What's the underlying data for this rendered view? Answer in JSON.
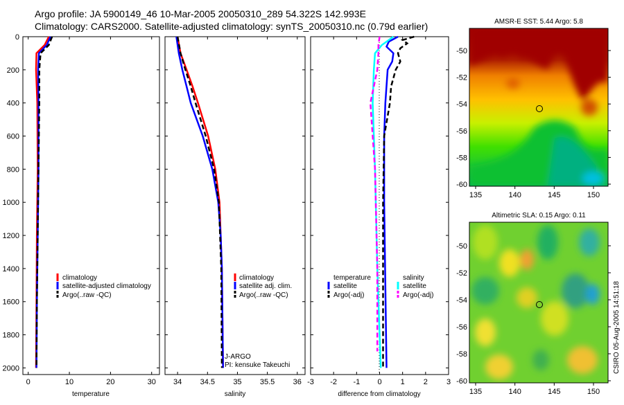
{
  "header": {
    "line1": "Argo profile: JA 5900149_46 10-Mar-2005 20050310_289 54.322S 142.993E",
    "line2": "Climatology: CARS2000. Satellite-adjusted climatology: synTS_20050310.nc (0.79d earlier)"
  },
  "credit": "CSIRO 05-Aug-2005 14:51:18",
  "chart_data": [
    {
      "type": "line",
      "id": "temperature",
      "xlabel": "temperature",
      "ylabel": "depth",
      "xlim": [
        -1.3,
        31.9
      ],
      "ylim": [
        2040,
        0
      ],
      "xticks": [
        0,
        10,
        20,
        30
      ],
      "yticks": [
        0,
        200,
        400,
        600,
        800,
        1000,
        1200,
        1400,
        1600,
        1800,
        2000
      ],
      "legend": [
        "climatology",
        "satellite-adjusted climatology",
        "Argo(..raw -QC)"
      ],
      "series": [
        {
          "name": "climatology",
          "color": "#ff0000",
          "dash": false,
          "depth": [
            0,
            50,
            100,
            200,
            400,
            800,
            1200,
            1600,
            2000
          ],
          "values": [
            5.0,
            4.0,
            2.0,
            1.9,
            2.2,
            2.3,
            2.1,
            2.0,
            1.9
          ]
        },
        {
          "name": "satellite-adjusted climatology",
          "color": "#0000ff",
          "dash": false,
          "depth": [
            0,
            50,
            100,
            200,
            400,
            800,
            1200,
            1600,
            2000
          ],
          "values": [
            5.4,
            4.5,
            2.6,
            2.4,
            2.5,
            2.5,
            2.3,
            2.1,
            2.0
          ]
        },
        {
          "name": "Argo(..raw -QC)",
          "color": "#000000",
          "dash": true,
          "depth": [
            0,
            50,
            100,
            200,
            400,
            800,
            1200,
            1600,
            2000
          ],
          "values": [
            5.8,
            5.0,
            3.0,
            2.7,
            2.7,
            2.5,
            2.3,
            2.1,
            2.0
          ]
        }
      ]
    },
    {
      "type": "line",
      "id": "salinity",
      "xlabel": "salinity",
      "xlim": [
        33.79,
        36.13
      ],
      "ylim": [
        2040,
        0
      ],
      "xticks": [
        34,
        34.5,
        35,
        35.5,
        36
      ],
      "legend": [
        "climatology",
        "satellite adj. clim.",
        "Argo(..raw -QC)"
      ],
      "annotations": [
        "J-ARGO",
        "PI: kensuke Takeuchi"
      ],
      "series": [
        {
          "name": "climatology",
          "color": "#ff0000",
          "dash": false,
          "depth": [
            0,
            100,
            200,
            300,
            400,
            600,
            800,
            1000,
            1200,
            1400,
            2000
          ],
          "values": [
            34.0,
            34.05,
            34.15,
            34.25,
            34.34,
            34.51,
            34.63,
            34.7,
            34.72,
            34.74,
            34.76
          ]
        },
        {
          "name": "satellite adj. clim.",
          "color": "#0000ff",
          "dash": false,
          "depth": [
            0,
            100,
            200,
            300,
            400,
            600,
            800,
            1000,
            1200,
            1400,
            2000
          ],
          "values": [
            33.98,
            34.02,
            34.08,
            34.15,
            34.22,
            34.42,
            34.58,
            34.68,
            34.72,
            34.74,
            34.76
          ]
        },
        {
          "name": "Argo(..raw -QC)",
          "color": "#000000",
          "dash": true,
          "depth": [
            0,
            100,
            200,
            300,
            400,
            600,
            800,
            1000,
            1200,
            1400,
            2000
          ],
          "values": [
            34.0,
            34.05,
            34.13,
            34.22,
            34.3,
            34.47,
            34.61,
            34.69,
            34.71,
            34.73,
            34.74
          ]
        }
      ]
    },
    {
      "type": "line",
      "id": "difference",
      "xlabel": "difference from climatology",
      "xlim": [
        -3,
        3
      ],
      "ylim": [
        2040,
        0
      ],
      "xticks": [
        -3,
        -2,
        -1,
        0,
        1,
        2,
        3
      ],
      "legend_titles": [
        "temperature",
        "salinity"
      ],
      "legend": [
        "satellite",
        "Argo(-adj)",
        "satellite",
        "Argo(-adj)"
      ],
      "series": [
        {
          "name": "temperature satellite",
          "color": "#0000ff",
          "dash": false,
          "depth": [
            0,
            30,
            60,
            100,
            150,
            200,
            400,
            600,
            1000,
            1500,
            2000
          ],
          "values": [
            0.8,
            0.4,
            0.3,
            0.6,
            0.55,
            0.35,
            0.25,
            0.2,
            0.2,
            0.25,
            0.3
          ]
        },
        {
          "name": "temperature Argo(-adj)",
          "color": "#000000",
          "dash": true,
          "depth": [
            0,
            20,
            40,
            70,
            100,
            150,
            200,
            300,
            400,
            600,
            1000,
            1500,
            2000
          ],
          "values": [
            1.5,
            1.0,
            1.2,
            0.9,
            0.8,
            0.9,
            0.7,
            0.5,
            0.45,
            0.2,
            0.15,
            0.15,
            0.15
          ]
        },
        {
          "name": "salinity satellite",
          "color": "#00ffff",
          "dash": false,
          "depth": [
            0,
            50,
            100,
            200,
            400,
            800,
            1400,
            2000
          ],
          "values": [
            0.6,
            0.1,
            -0.2,
            -0.25,
            -0.3,
            -0.2,
            -0.1,
            0.05
          ]
        },
        {
          "name": "salinity Argo(-adj)",
          "color": "#ff00ff",
          "dash": true,
          "depth": [
            0,
            50,
            100,
            200,
            400,
            800,
            1400,
            1900
          ],
          "values": [
            0.0,
            -0.05,
            -0.05,
            -0.1,
            -0.4,
            -0.2,
            -0.1,
            -0.1
          ]
        }
      ]
    },
    {
      "type": "heatmap",
      "id": "sst-map",
      "title": "AMSR-E SST: 5.44 Argo: 5.8",
      "xticks": [
        135,
        140,
        145,
        150
      ],
      "yticks": [
        -50,
        -52,
        -54,
        -56,
        -58,
        -60
      ],
      "marker": {
        "lon": 142.993,
        "lat": -54.322
      }
    },
    {
      "type": "heatmap",
      "id": "sla-map",
      "title": "Altimetric SLA: 0.15 Argo: 0.11",
      "xticks": [
        135,
        140,
        145,
        150
      ],
      "yticks": [
        -50,
        -52,
        -54,
        -56,
        -58,
        -60
      ],
      "marker": {
        "lon": 142.993,
        "lat": -54.322
      }
    }
  ]
}
